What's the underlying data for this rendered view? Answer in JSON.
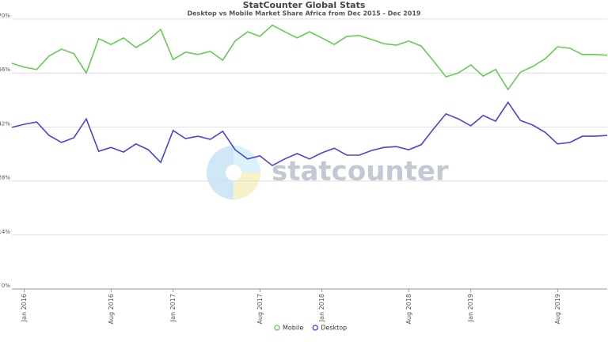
{
  "chart_data": {
    "type": "line",
    "title": "StatCounter Global Stats",
    "subtitle": "Desktop vs Mobile Market Share Africa from Dec 2015 - Dec 2019",
    "watermark": "statcounter",
    "categories": [
      null,
      "Jan 2016",
      null,
      null,
      null,
      null,
      null,
      null,
      "Aug 2016",
      null,
      null,
      null,
      null,
      "Jan 2017",
      null,
      null,
      null,
      null,
      null,
      null,
      "Aug 2017",
      null,
      null,
      null,
      null,
      "Jan 2018",
      null,
      null,
      null,
      null,
      null,
      null,
      "Aug 2018",
      null,
      null,
      null,
      null,
      "Jan 2019",
      null,
      null,
      null,
      null,
      null,
      null,
      "Aug 2019",
      null,
      null,
      null,
      null
    ],
    "series": [
      {
        "name": "Mobile",
        "color": "#66cc55",
        "values": [
          58.5,
          57.5,
          56.9,
          60.4,
          62.2,
          61.0,
          56.0,
          64.9,
          63.4,
          65.1,
          62.6,
          64.5,
          67.3,
          59.5,
          61.4,
          60.8,
          61.6,
          59.3,
          64.3,
          66.7,
          65.5,
          68.4,
          66.7,
          65.1,
          66.7,
          65.1,
          63.4,
          65.5,
          65.7,
          64.7,
          63.6,
          63.2,
          64.3,
          63.0,
          59.1,
          55.0,
          56.0,
          58.1,
          55.2,
          56.9,
          51.7,
          56.2,
          57.7,
          59.7,
          62.8,
          62.4,
          60.8,
          60.8,
          60.6
        ]
      },
      {
        "name": "Desktop",
        "color": "#4444dd",
        "values": [
          41.9,
          42.7,
          43.3,
          39.8,
          38.0,
          39.2,
          44.1,
          35.7,
          36.7,
          35.5,
          37.6,
          36.1,
          32.8,
          41.1,
          39.0,
          39.6,
          38.8,
          40.9,
          36.1,
          33.7,
          34.5,
          32.0,
          33.7,
          35.1,
          33.7,
          35.3,
          36.5,
          34.7,
          34.7,
          35.9,
          36.7,
          36.9,
          36.1,
          37.4,
          41.5,
          45.4,
          44.1,
          42.3,
          45.0,
          43.5,
          48.4,
          43.7,
          42.5,
          40.6,
          37.6,
          38.0,
          39.6,
          39.6,
          39.8
        ]
      }
    ],
    "ylim": [
      0,
      70
    ],
    "yticks": [
      {
        "value": 0,
        "label": "0%"
      },
      {
        "value": 14,
        "label": "14%"
      },
      {
        "value": 28,
        "label": "28%"
      },
      {
        "value": 42,
        "label": "42%"
      },
      {
        "value": 56,
        "label": "56%"
      },
      {
        "value": 70,
        "label": "70%"
      }
    ],
    "grid": true,
    "legend": "bottom"
  }
}
